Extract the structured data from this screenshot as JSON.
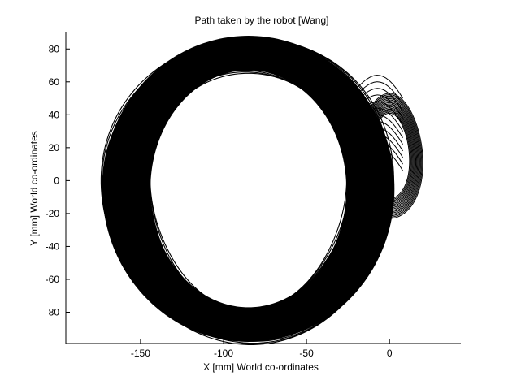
{
  "chart_data": {
    "type": "line",
    "title": "Path taken by the robot [Wang]",
    "xlabel": "X [mm] World co-ordinates",
    "ylabel": "Y [mm] World co-ordinates",
    "xlim": [
      -195,
      43
    ],
    "ylim": [
      -99,
      90
    ],
    "xticks": [
      -150,
      -100,
      -50,
      0
    ],
    "yticks": [
      -80,
      -60,
      -40,
      -20,
      0,
      20,
      40,
      60,
      80
    ],
    "grid": false,
    "line_color": "#000000",
    "series": [
      {
        "values": "dense repeated near-circular loops",
        "center": [
          -85,
          -5
        ],
        "outer_radius": [
          88,
          93
        ],
        "inner_radius": [
          59,
          72
        ],
        "lobe_center": [
          0,
          15
        ],
        "lobe_radius": [
          20,
          38
        ]
      }
    ]
  }
}
